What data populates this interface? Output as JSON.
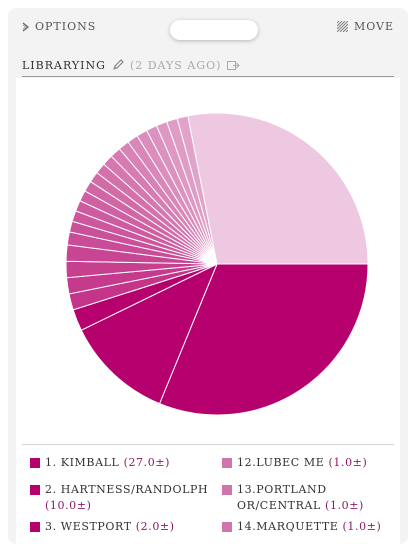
{
  "topbar": {
    "options_label": "OPTIONS",
    "move_label": "MOVE",
    "options_icon": "chevron-right-icon",
    "move_icon": "grip-icon"
  },
  "header": {
    "title": "LIBRARYING",
    "time_ago": "(2 DAYS AGO)",
    "edit_icon": "pencil-icon",
    "export_icon": "export-icon"
  },
  "colors": {
    "dark": "#b5006e",
    "medium": "#c4358a",
    "mediumLight": "#d075ac",
    "light": "#edc8e0",
    "slice_stroke": "#ffffff"
  },
  "chart_data": {
    "type": "pie",
    "title": "",
    "slices": [
      {
        "label": "KIMBALL",
        "value": 27.0
      },
      {
        "label": "HARTNESS/RANDOLPH",
        "value": 10.0
      },
      {
        "label": "WESTPORT",
        "value": 2.0
      },
      {
        "label": "",
        "value": 1.5
      },
      {
        "label": "",
        "value": 1.5
      },
      {
        "label": "",
        "value": 1.5
      },
      {
        "label": "",
        "value": 1.5
      },
      {
        "label": "",
        "value": 1.2
      },
      {
        "label": "",
        "value": 1.0
      },
      {
        "label": "",
        "value": 1.0
      },
      {
        "label": "",
        "value": 1.0
      },
      {
        "label": "LUBEC ME",
        "value": 1.0
      },
      {
        "label": "PORTLAND OR/CENTRAL",
        "value": 1.0
      },
      {
        "label": "MARQUETTE",
        "value": 1.0
      },
      {
        "label": "",
        "value": 1.0
      },
      {
        "label": "",
        "value": 1.0
      },
      {
        "label": "",
        "value": 1.0
      },
      {
        "label": "",
        "value": 1.0
      },
      {
        "label": "",
        "value": 1.0
      },
      {
        "label": "",
        "value": 1.0
      },
      {
        "label": "",
        "value": 1.0
      },
      {
        "label": "",
        "value": 1.0
      },
      {
        "label": "",
        "value": 1.0
      },
      {
        "label": "",
        "value": 1.0
      },
      {
        "label": "",
        "value": 24.3
      }
    ],
    "legend": [
      {
        "rank": "1.",
        "label": "KIMBALL",
        "value": "(27.0±)",
        "color": "#b5006e"
      },
      {
        "rank": "2.",
        "label": "HARTNESS/RANDOLPH",
        "value": "(10.0±)",
        "color": "#b5006e"
      },
      {
        "rank": "3.",
        "label": "WESTPORT",
        "value": "(2.0±)",
        "color": "#b5006e"
      },
      {
        "rank": "12.",
        "label": "LUBEC ME",
        "value": "(1.0±)",
        "color": "#d075ac"
      },
      {
        "rank": "13.",
        "label": "PORTLAND OR/CENTRAL",
        "value": "(1.0±)",
        "color": "#d075ac"
      },
      {
        "rank": "14.",
        "label": "MARQUETTE",
        "value": "(1.0±)",
        "color": "#d075ac"
      }
    ],
    "legend_placement": "bottom"
  }
}
